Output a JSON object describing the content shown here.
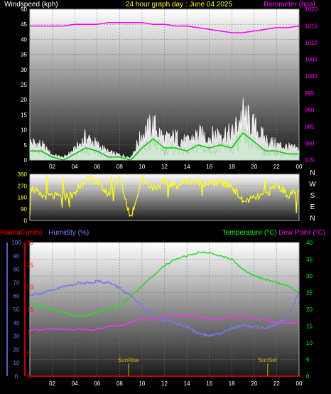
{
  "header": {
    "left_label": "Windspeed (kph)",
    "title": "24 hour graph day : June 04 2025",
    "right_label": "Barometer (hpa)"
  },
  "colors": {
    "white": "#ffffff",
    "yellow": "#ffff00",
    "magenta": "#ff00ff",
    "green": "#00ff00",
    "red": "#ff0000",
    "blue": "#7b7bff",
    "gust": "#ffffff",
    "wind_fill": "#cfe8cf",
    "wind_avg": "#00cc00",
    "humidity_line": "#7777ee",
    "temp_line": "#22dd22",
    "dew_line": "#e040e0",
    "rain_line": "#ff0000",
    "sun_marker": "#c8b400"
  },
  "chart_data": [
    {
      "id": "wind",
      "type": "area",
      "xlabel": "",
      "ylabel": "Windspeed (kph)",
      "y2label": "Barometer (hpa)",
      "ylim": [
        0,
        50
      ],
      "y2lim": [
        975,
        1020
      ],
      "yticks": [
        "0",
        "5",
        "10",
        "15",
        "20",
        "25",
        "30",
        "35",
        "40",
        "45",
        "50"
      ],
      "y2ticks": [
        "975",
        "980",
        "985",
        "990",
        "995",
        "1000",
        "1005",
        "1010",
        "1015",
        "1020"
      ],
      "x_tick_labels": [
        "02",
        "04",
        "06",
        "08",
        "10",
        "12",
        "14",
        "16",
        "18",
        "20",
        "22",
        "00"
      ],
      "hours": [
        0,
        1,
        2,
        3,
        4,
        5,
        6,
        7,
        8,
        9,
        10,
        11,
        12,
        13,
        14,
        15,
        16,
        17,
        18,
        19,
        20,
        21,
        22,
        23,
        24
      ],
      "series": [
        {
          "key": "gust",
          "values": [
            7,
            6,
            2,
            1,
            4,
            9,
            6,
            3,
            2,
            1,
            10,
            14,
            8,
            9,
            7,
            10,
            9,
            11,
            10,
            18,
            13,
            8,
            6,
            5,
            4
          ]
        },
        {
          "key": "wind",
          "values": [
            3,
            3,
            1,
            0,
            2,
            4,
            3,
            1,
            1,
            0,
            4,
            7,
            4,
            4,
            3,
            5,
            4,
            5,
            4,
            9,
            6,
            3,
            3,
            2,
            2
          ]
        },
        {
          "key": "barometer",
          "values": [
            1015,
            1015,
            1015,
            1015,
            1015.5,
            1015.5,
            1015.5,
            1016,
            1016,
            1016,
            1016,
            1015.5,
            1015.5,
            1015,
            1015,
            1014.5,
            1014,
            1013.5,
            1013,
            1013,
            1013.5,
            1014,
            1014.5,
            1014.5,
            1015
          ]
        }
      ]
    },
    {
      "id": "direction",
      "type": "line",
      "ylim": [
        0,
        360
      ],
      "yticks": [
        "0",
        "90",
        "180",
        "270",
        "360"
      ],
      "compass": [
        "N",
        "W",
        "S",
        "E",
        "N"
      ],
      "hours": [
        0,
        1,
        2,
        3,
        4,
        5,
        6,
        7,
        8,
        9,
        10,
        11,
        12,
        13,
        14,
        15,
        16,
        17,
        18,
        19,
        20,
        21,
        22,
        23,
        24
      ],
      "series": [
        {
          "key": "direction",
          "values": [
            270,
            190,
            190,
            190,
            200,
            330,
            300,
            200,
            330,
            20,
            330,
            250,
            300,
            270,
            310,
            300,
            290,
            290,
            270,
            150,
            170,
            200,
            280,
            200,
            220
          ]
        }
      ]
    },
    {
      "id": "temp",
      "type": "line",
      "left_labels": {
        "rain": "Rainfall (mm)",
        "humidity": "Humidity (%)"
      },
      "right_labels": {
        "temp": "Temperature (°C)",
        "dew": "Dew Point (°C)"
      },
      "humidity_ylim": [
        0,
        100
      ],
      "humidity_ticks": [
        "0",
        "10",
        "20",
        "30",
        "40",
        "50",
        "60",
        "70",
        "80",
        "90",
        "100"
      ],
      "rain_ylim": [
        0,
        30
      ],
      "rain_ticks": [
        "0",
        "5",
        "10",
        "15",
        "20",
        "25",
        "30"
      ],
      "temp_ylim": [
        0,
        40
      ],
      "temp_ticks": [
        "0",
        "5",
        "10",
        "15",
        "20",
        "25",
        "30",
        "35",
        "40"
      ],
      "x_tick_labels": [
        "02",
        "04",
        "06",
        "08",
        "10",
        "12",
        "14",
        "16",
        "18",
        "20",
        "22",
        "00"
      ],
      "markers": [
        {
          "label": "SunRise",
          "hour": 8.8
        },
        {
          "label": "SunSet",
          "hour": 21.2
        }
      ],
      "hours": [
        0,
        1,
        2,
        3,
        4,
        5,
        6,
        7,
        8,
        9,
        10,
        11,
        12,
        13,
        14,
        15,
        16,
        17,
        18,
        19,
        20,
        21,
        22,
        23,
        24
      ],
      "series": [
        {
          "key": "humidity",
          "values": [
            61,
            62,
            64,
            67,
            69,
            70,
            71,
            70,
            66,
            60,
            52,
            46,
            42,
            40,
            37,
            32,
            30,
            32,
            36,
            38,
            37,
            36,
            39,
            44,
            63
          ]
        },
        {
          "key": "temperature",
          "values": [
            22,
            21,
            20,
            19,
            18,
            18,
            19,
            20,
            21,
            24,
            27,
            30,
            33,
            35,
            36,
            37,
            37,
            36,
            35,
            32,
            30,
            29,
            28,
            27,
            25
          ]
        },
        {
          "key": "dewpoint",
          "values": [
            14,
            14,
            14,
            14,
            14,
            14,
            14,
            15,
            15,
            16,
            17,
            17,
            18,
            18,
            18,
            18,
            17,
            17,
            18,
            18,
            17,
            17,
            16,
            16,
            16
          ]
        },
        {
          "key": "rainfall",
          "values": [
            0,
            0,
            0,
            0,
            0,
            0,
            0,
            0,
            0,
            0,
            0,
            0,
            0,
            0,
            0,
            0,
            0,
            0,
            0,
            0,
            0,
            0,
            0,
            0,
            0
          ]
        }
      ]
    }
  ]
}
